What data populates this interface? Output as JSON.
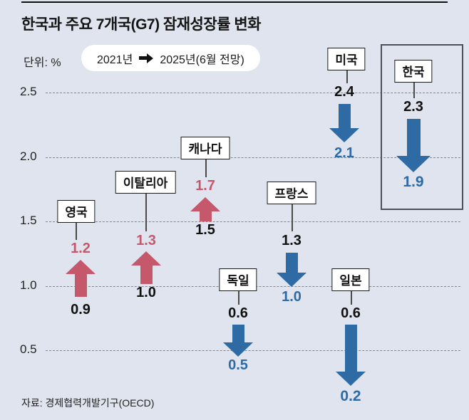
{
  "title": "한국과 주요 7개국(G7) 잠재성장률 변화",
  "unit_label": "단위: %",
  "legend": {
    "from_label": "2021년",
    "to_label": "2025년(6월 전망)",
    "arrow_icon": "right-arrow-icon"
  },
  "source": "자료: 경제협력개발기구(OECD)",
  "colors": {
    "background": "#dfe4ee",
    "increase_arrow": "#c5586a",
    "decrease_arrow": "#2e6ba4",
    "highlight_box_border": "#4c5159"
  },
  "chart_data": {
    "type": "arrow-change",
    "title": "한국과 주요 7개국(G7) 잠재성장률 변화",
    "unit": "%",
    "period": {
      "from": "2021년",
      "to": "2025년(6월 전망)"
    },
    "ylim": [
      0.2,
      2.5
    ],
    "grid": "dashed",
    "y_ticks": [
      "2.5",
      "2.0",
      "1.5",
      "1.0",
      "0.5"
    ],
    "series": [
      {
        "country": "영국",
        "from": 0.9,
        "to": 1.2,
        "from_label": "0.9",
        "to_label": "1.2",
        "direction": "up",
        "highlighted": false
      },
      {
        "country": "이탈리아",
        "from": 1.0,
        "to": 1.3,
        "from_label": "1.0",
        "to_label": "1.3",
        "direction": "up",
        "highlighted": false
      },
      {
        "country": "캐나다",
        "from": 1.5,
        "to": 1.7,
        "from_label": "1.5",
        "to_label": "1.7",
        "direction": "up",
        "highlighted": false
      },
      {
        "country": "프랑스",
        "from": 1.3,
        "to": 1.0,
        "from_label": "1.3",
        "to_label": "1.0",
        "direction": "down",
        "highlighted": false
      },
      {
        "country": "미국",
        "from": 2.4,
        "to": 2.1,
        "from_label": "2.4",
        "to_label": "2.1",
        "direction": "down",
        "highlighted": false
      },
      {
        "country": "한국",
        "from": 2.3,
        "to": 1.9,
        "from_label": "2.3",
        "to_label": "1.9",
        "direction": "down",
        "highlighted": true
      },
      {
        "country": "독일",
        "from": 0.6,
        "to": 0.5,
        "from_label": "0.6",
        "to_label": "0.5",
        "direction": "down",
        "highlighted": false
      },
      {
        "country": "일본",
        "from": 0.6,
        "to": 0.2,
        "from_label": "0.6",
        "to_label": "0.2",
        "direction": "down",
        "highlighted": false
      }
    ]
  }
}
